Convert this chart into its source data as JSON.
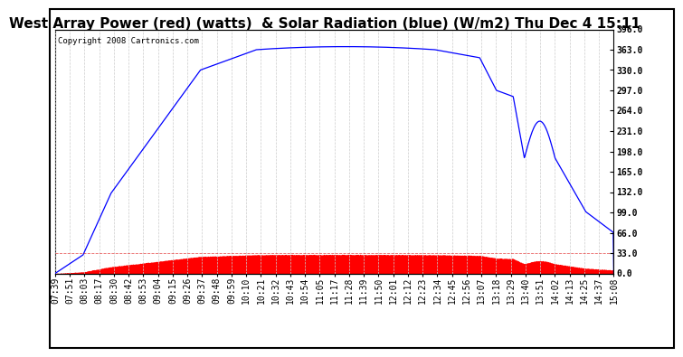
{
  "title": "West Array Power (red) (watts)  & Solar Radiation (blue) (W/m2) Thu Dec 4 15:11",
  "copyright_text": "Copyright 2008 Cartronics.com",
  "y_ticks": [
    0.0,
    33.0,
    66.0,
    99.0,
    132.0,
    165.0,
    198.0,
    231.0,
    264.0,
    297.0,
    330.0,
    363.0,
    396.0
  ],
  "y_max": 396.0,
  "y_min": 0.0,
  "x_labels": [
    "07:39",
    "07:51",
    "08:03",
    "08:17",
    "08:30",
    "08:42",
    "08:53",
    "09:04",
    "09:15",
    "09:26",
    "09:37",
    "09:48",
    "09:59",
    "10:10",
    "10:21",
    "10:32",
    "10:43",
    "10:54",
    "11:05",
    "11:17",
    "11:28",
    "11:39",
    "11:50",
    "12:01",
    "12:12",
    "12:23",
    "12:34",
    "12:45",
    "12:56",
    "13:07",
    "13:18",
    "13:29",
    "13:40",
    "13:51",
    "14:02",
    "14:13",
    "14:25",
    "14:37",
    "15:08"
  ],
  "background_color": "#ffffff",
  "plot_bg_color": "#ffffff",
  "grid_color": "#cccccc",
  "blue_line_color": "#0000ff",
  "red_fill_color": "#ff0000",
  "title_fontsize": 11,
  "tick_fontsize": 7.0,
  "copyright_fontsize": 6.5
}
